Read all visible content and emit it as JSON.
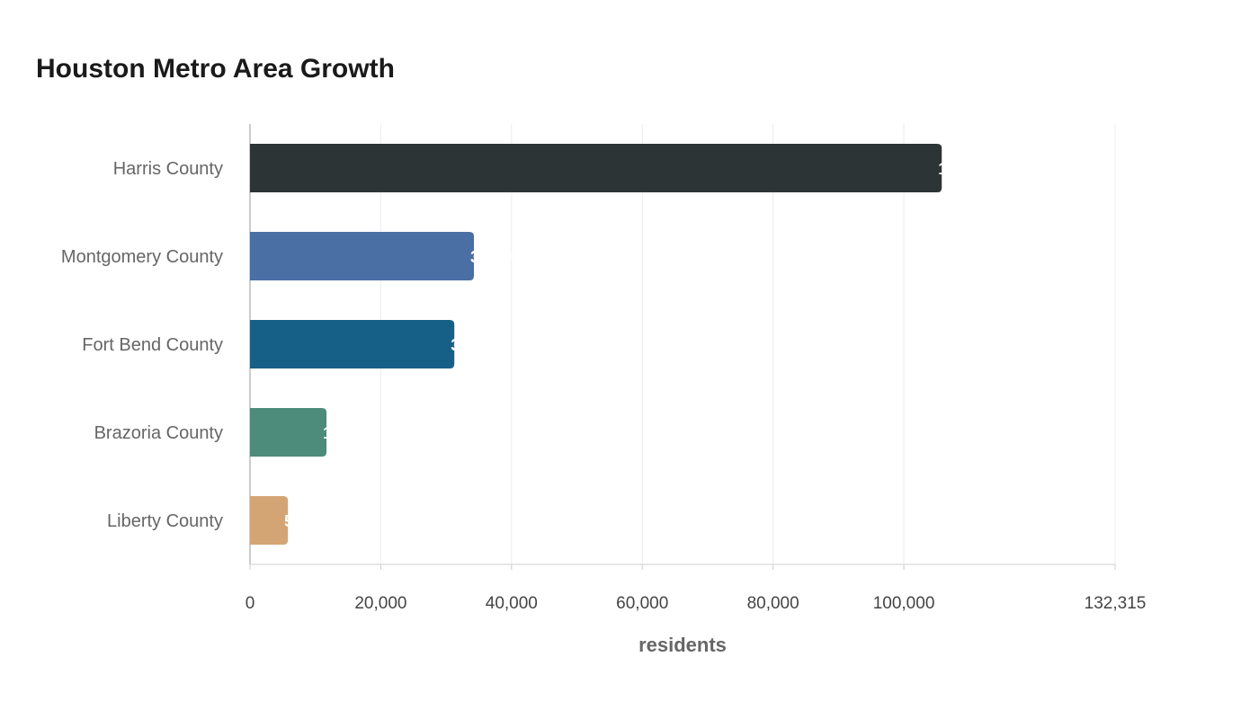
{
  "chart_data": {
    "type": "bar",
    "orientation": "horizontal",
    "title": "Houston Metro Area Growth",
    "xlabel": "residents",
    "ylabel": "",
    "xlim": [
      0,
      132315
    ],
    "x_ticks": [
      0,
      20000,
      40000,
      60000,
      80000,
      100000,
      132315
    ],
    "x_tick_labels": [
      "0",
      "20,000",
      "40,000",
      "60,000",
      "80,000",
      "100,000",
      "132,315"
    ],
    "grid": true,
    "categories": [
      "Harris County",
      "Montgomery County",
      "Fort Bend County",
      "Brazoria County",
      "Liberty County"
    ],
    "values": [
      105800,
      34250,
      31250,
      11700,
      5800
    ],
    "colors": [
      "#2d3436",
      "#4a6fa5",
      "#166088",
      "#4d8b7a",
      "#d4a574"
    ]
  }
}
